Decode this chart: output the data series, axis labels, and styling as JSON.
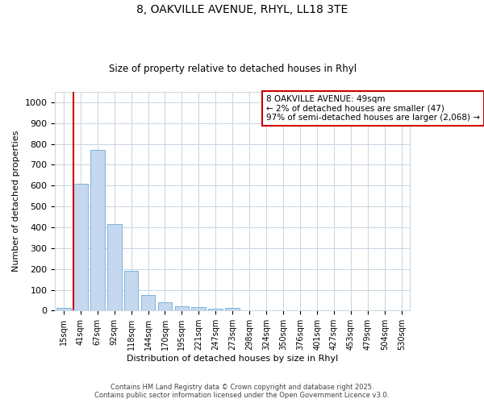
{
  "title_line1": "8, OAKVILLE AVENUE, RHYL, LL18 3TE",
  "title_line2": "Size of property relative to detached houses in Rhyl",
  "xlabel": "Distribution of detached houses by size in Rhyl",
  "ylabel": "Number of detached properties",
  "categories": [
    "15sqm",
    "41sqm",
    "67sqm",
    "92sqm",
    "118sqm",
    "144sqm",
    "170sqm",
    "195sqm",
    "221sqm",
    "247sqm",
    "273sqm",
    "298sqm",
    "324sqm",
    "350sqm",
    "376sqm",
    "401sqm",
    "427sqm",
    "453sqm",
    "479sqm",
    "504sqm",
    "530sqm"
  ],
  "values": [
    13,
    610,
    770,
    415,
    190,
    75,
    40,
    20,
    15,
    8,
    13,
    0,
    0,
    0,
    0,
    0,
    0,
    0,
    0,
    0,
    0
  ],
  "bar_color": "#c5d8f0",
  "bar_edge_color": "#6baed6",
  "vline_color": "#cc0000",
  "annotation_text": "8 OAKVILLE AVENUE: 49sqm\n← 2% of detached houses are smaller (47)\n97% of semi-detached houses are larger (2,068) →",
  "annotation_box_color": "#cc0000",
  "footer_line1": "Contains HM Land Registry data © Crown copyright and database right 2025.",
  "footer_line2": "Contains public sector information licensed under the Open Government Licence v3.0.",
  "ylim": [
    0,
    1050
  ],
  "yticks": [
    0,
    100,
    200,
    300,
    400,
    500,
    600,
    700,
    800,
    900,
    1000
  ],
  "background_color": "#ffffff",
  "grid_color": "#c8d4e0"
}
